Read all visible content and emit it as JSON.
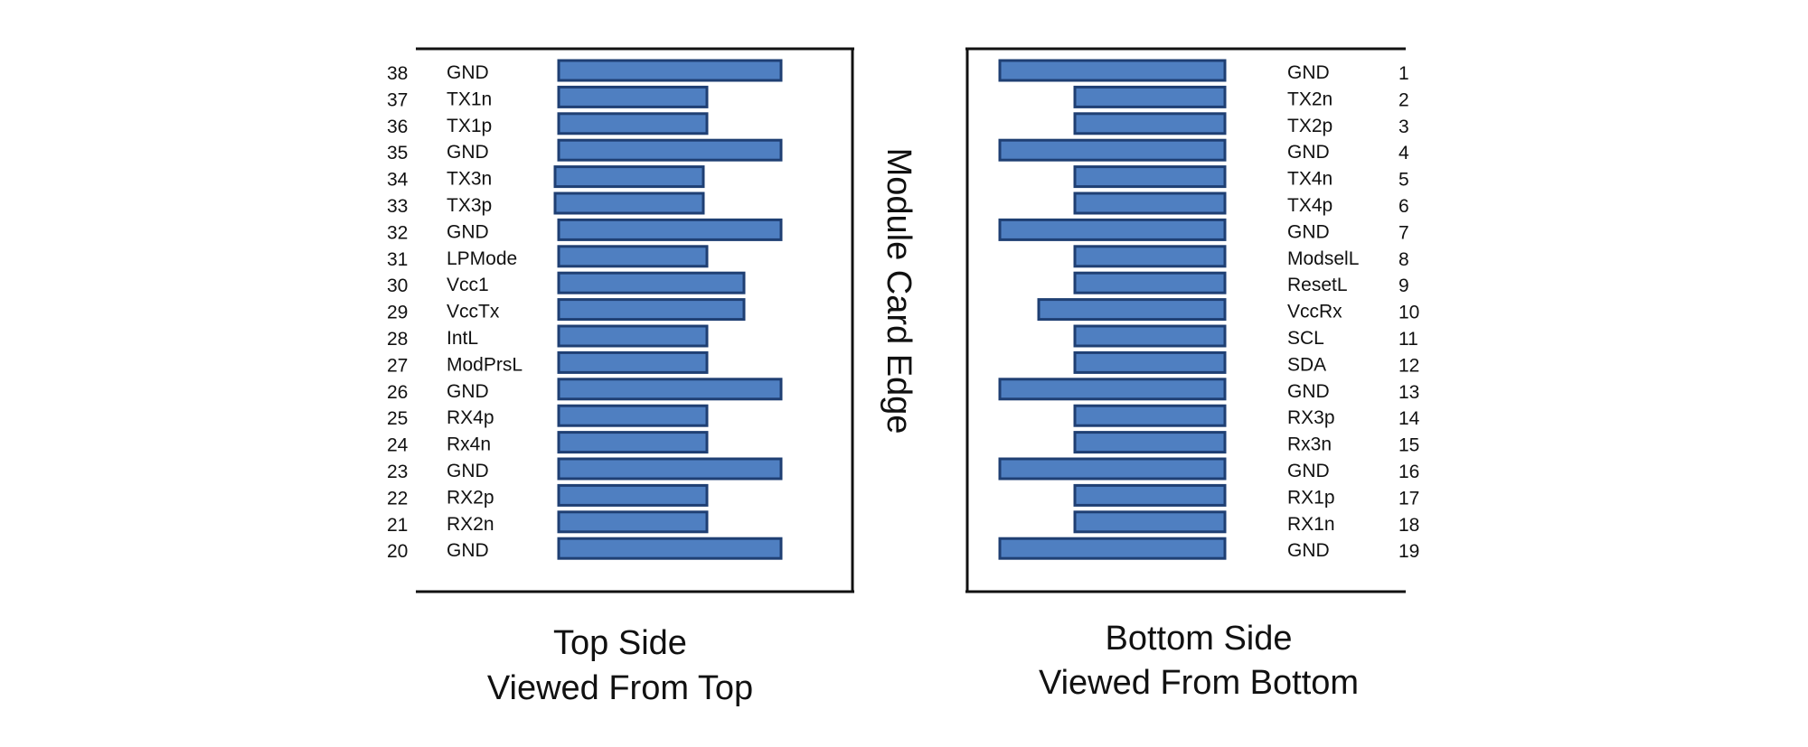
{
  "center_label": "Module Card Edge",
  "colors": {
    "pad_fill": "#4f7fc1",
    "pad_stroke": "#1f3f73",
    "frame": "#111111"
  },
  "top_side": {
    "caption_line1": "Top Side",
    "caption_line2": "Viewed From Top",
    "pins": [
      {
        "num": "38",
        "signal": "GND",
        "pad": "long"
      },
      {
        "num": "37",
        "signal": "TX1n",
        "pad": "short"
      },
      {
        "num": "36",
        "signal": "TX1p",
        "pad": "short"
      },
      {
        "num": "35",
        "signal": "GND",
        "pad": "long"
      },
      {
        "num": "34",
        "signal": "TX3n",
        "pad": "short"
      },
      {
        "num": "33",
        "signal": "TX3p",
        "pad": "short"
      },
      {
        "num": "32",
        "signal": "GND",
        "pad": "long"
      },
      {
        "num": "31",
        "signal": "LPMode",
        "pad": "short"
      },
      {
        "num": "30",
        "signal": "Vcc1",
        "pad": "medium"
      },
      {
        "num": "29",
        "signal": "VccTx",
        "pad": "medium"
      },
      {
        "num": "28",
        "signal": "IntL",
        "pad": "short"
      },
      {
        "num": "27",
        "signal": "ModPrsL",
        "pad": "short"
      },
      {
        "num": "26",
        "signal": "GND",
        "pad": "long"
      },
      {
        "num": "25",
        "signal": "RX4p",
        "pad": "short"
      },
      {
        "num": "24",
        "signal": "Rx4n",
        "pad": "short"
      },
      {
        "num": "23",
        "signal": "GND",
        "pad": "long"
      },
      {
        "num": "22",
        "signal": "RX2p",
        "pad": "short"
      },
      {
        "num": "21",
        "signal": "RX2n",
        "pad": "short"
      },
      {
        "num": "20",
        "signal": "GND",
        "pad": "long"
      }
    ]
  },
  "bottom_side": {
    "caption_line1": "Bottom Side",
    "caption_line2": "Viewed From Bottom",
    "pins": [
      {
        "num": "1",
        "signal": "GND",
        "pad": "long"
      },
      {
        "num": "2",
        "signal": "TX2n",
        "pad": "short"
      },
      {
        "num": "3",
        "signal": "TX2p",
        "pad": "short"
      },
      {
        "num": "4",
        "signal": "GND",
        "pad": "long"
      },
      {
        "num": "5",
        "signal": "TX4n",
        "pad": "short"
      },
      {
        "num": "6",
        "signal": "TX4p",
        "pad": "short"
      },
      {
        "num": "7",
        "signal": "GND",
        "pad": "long"
      },
      {
        "num": "8",
        "signal": "ModselL",
        "pad": "short"
      },
      {
        "num": "9",
        "signal": "ResetL",
        "pad": "short"
      },
      {
        "num": "10",
        "signal": "VccRx",
        "pad": "medium"
      },
      {
        "num": "11",
        "signal": "SCL",
        "pad": "short"
      },
      {
        "num": "12",
        "signal": "SDA",
        "pad": "short"
      },
      {
        "num": "13",
        "signal": "GND",
        "pad": "long"
      },
      {
        "num": "14",
        "signal": "RX3p",
        "pad": "short"
      },
      {
        "num": "15",
        "signal": "Rx3n",
        "pad": "short"
      },
      {
        "num": "16",
        "signal": "GND",
        "pad": "long"
      },
      {
        "num": "17",
        "signal": "RX1p",
        "pad": "short"
      },
      {
        "num": "18",
        "signal": "RX1n",
        "pad": "short"
      },
      {
        "num": "19",
        "signal": "GND",
        "pad": "long"
      }
    ]
  }
}
